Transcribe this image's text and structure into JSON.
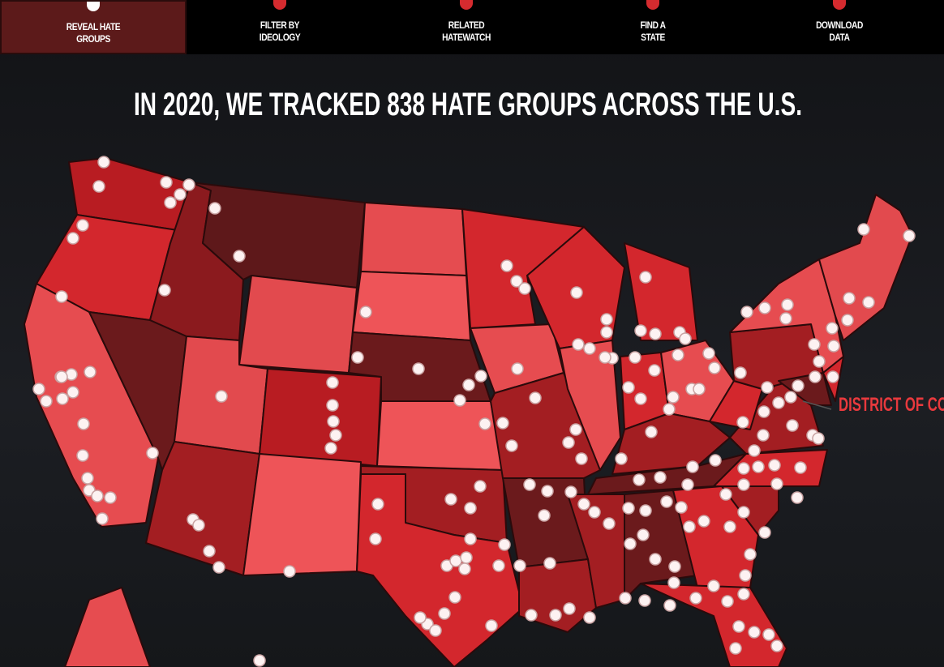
{
  "nav": [
    {
      "lines": [
        "REVEAL HATE",
        "GROUPS"
      ]
    },
    {
      "lines": [
        "FILTER BY",
        "IDEOLOGY"
      ]
    },
    {
      "lines": [
        "RELATED",
        "HATEWATCH"
      ]
    },
    {
      "lines": [
        "FIND A",
        "STATE"
      ]
    },
    {
      "lines": [
        "DOWNLOAD",
        "DATA"
      ]
    }
  ],
  "title": "IN 2020, WE TRACKED 838 HATE GROUPS ACROSS THE U.S.",
  "callout": "DISTRICT OF COLUMBIA"
}
